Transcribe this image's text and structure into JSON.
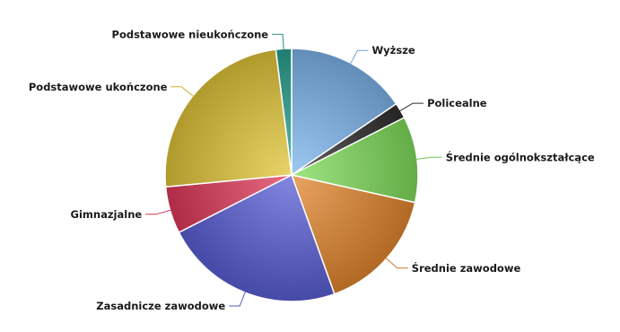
{
  "chart_data": {
    "type": "pie",
    "title": "",
    "slices": [
      {
        "label": "Wyższe",
        "value": 15.5,
        "color": "#7cb5ec"
      },
      {
        "label": "Policealne",
        "value": 2.0,
        "color": "#2e2e2e"
      },
      {
        "label": "Średnie ogólnokształcące",
        "value": 11.0,
        "color": "#7fdc5a"
      },
      {
        "label": "Średnie zawodowe",
        "value": 16.0,
        "color": "#e3862d"
      },
      {
        "label": "Zasadnicze zawodowe",
        "value": 23.0,
        "color": "#5a5fd6"
      },
      {
        "label": "Gimnazjalne",
        "value": 6.0,
        "color": "#e0395a"
      },
      {
        "label": "Podstawowe ukończone",
        "value": 24.5,
        "color": "#e2c637"
      },
      {
        "label": "Podstawowe nieukończone",
        "value": 2.0,
        "color": "#28a08e"
      }
    ],
    "start_angle_deg": 0,
    "direction": "clockwise",
    "legend": "none",
    "data_labels": "outside-with-connectors"
  }
}
